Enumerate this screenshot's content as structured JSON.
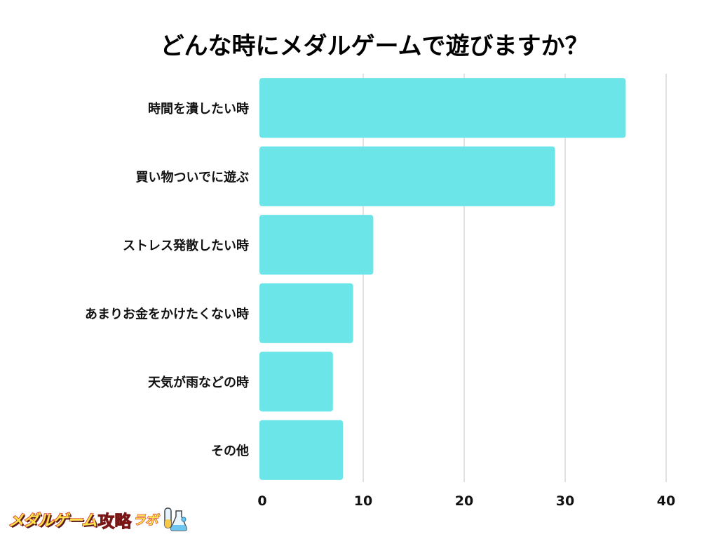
{
  "chart_data": {
    "type": "bar",
    "orientation": "horizontal",
    "title": "どんな時にメダルゲームで遊びますか？",
    "categories": [
      "時間を潰したい時",
      "買い物ついでに遊ぶ",
      "ストレス発散したい時",
      "あまりお金をかけたくない時",
      "天気が雨などの時",
      "その他"
    ],
    "values": [
      36,
      29,
      11,
      9,
      7,
      8
    ],
    "xlim": [
      0,
      40
    ],
    "xticks": [
      0,
      10,
      20,
      30,
      40
    ],
    "grid": true,
    "bar_color": "#6ce5e8",
    "grid_color": "#d9d9d9"
  },
  "logo": {
    "text_main": "メダルゲーム",
    "text_accent": "攻略",
    "text_small": "ラボ"
  }
}
